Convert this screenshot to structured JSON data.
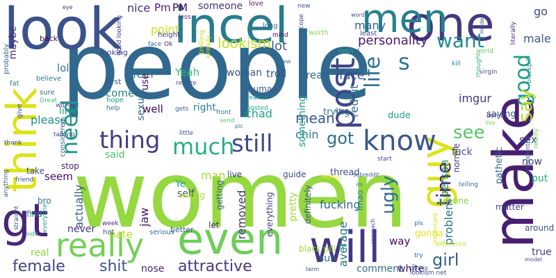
{
  "words": [
    {
      "text": "people",
      "color": "#31688e"
    },
    {
      "text": "women",
      "color": "#95d840"
    },
    {
      "text": "look",
      "color": "#3b528b"
    },
    {
      "text": "incel",
      "color": "#287d8e"
    },
    {
      "text": "one",
      "color": "#453781"
    },
    {
      "text": "men",
      "color": "#277f8e"
    },
    {
      "text": "make",
      "color": "#481f70"
    },
    {
      "text": "guy",
      "color": "#dde318"
    },
    {
      "text": "think",
      "color": "#dde318"
    },
    {
      "text": "gt",
      "color": "#482677"
    },
    {
      "text": "even",
      "color": "#6ece58"
    },
    {
      "text": "will",
      "color": "#453781"
    },
    {
      "text": "really",
      "color": "#73d055"
    },
    {
      "text": "know",
      "color": "#39558c"
    },
    {
      "text": "post",
      "color": "#3f4788"
    },
    {
      "text": "good",
      "color": "#1f9e89"
    },
    {
      "text": "say",
      "color": "#b8de29"
    },
    {
      "text": "life",
      "color": "#2d708e"
    },
    {
      "text": "time",
      "color": "#482173"
    },
    {
      "text": "want",
      "color": "#238a8d"
    },
    {
      "text": "thing",
      "color": "#433e85"
    },
    {
      "text": "much",
      "color": "#29af7f"
    },
    {
      "text": "still",
      "color": "#3e4989"
    },
    {
      "text": "need",
      "color": "#1f968b"
    },
    {
      "text": "s",
      "color": "#2a788e"
    },
    {
      "text": "got",
      "color": "#2d708e"
    },
    {
      "text": "see",
      "color": "#56c667"
    },
    {
      "text": "female",
      "color": "#404688"
    },
    {
      "text": "shit",
      "color": "#3b528b"
    },
    {
      "text": "attractive",
      "color": "#443983"
    },
    {
      "text": "ugly",
      "color": "#2e6e8e"
    },
    {
      "text": "girl",
      "color": "#34618d"
    },
    {
      "text": "fucking",
      "color": "#31688e"
    },
    {
      "text": "personality",
      "color": "#48186a"
    },
    {
      "text": "male",
      "color": "#3a548c"
    },
    {
      "text": "go",
      "color": "#414487"
    },
    {
      "text": "many",
      "color": "#33638d"
    },
    {
      "text": "lot",
      "color": "#38598c"
    },
    {
      "text": "lookism",
      "color": "#c2df23"
    },
    {
      "text": "nice",
      "color": "#472a7a"
    },
    {
      "text": "Pm",
      "color": "#481b6d"
    },
    {
      "text": "PM",
      "color": "#440154"
    },
    {
      "text": "someone",
      "color": "#46327e"
    },
    {
      "text": "point",
      "color": "#d0e11c"
    },
    {
      "text": "maybe",
      "color": "#46307e"
    },
    {
      "text": "feel",
      "color": "#2c738e"
    },
    {
      "text": "Yeah",
      "color": "#3dbc74"
    },
    {
      "text": "woman",
      "color": "#39568c"
    },
    {
      "text": "troll",
      "color": "#3a538b"
    },
    {
      "text": "read",
      "color": "#33638d"
    },
    {
      "text": "face",
      "color": "#3b518b"
    },
    {
      "text": "chad",
      "color": "#1fa287"
    },
    {
      "text": "mean",
      "color": "#375a8c"
    },
    {
      "text": "chin",
      "color": "#2b758e"
    },
    {
      "text": "reddit",
      "color": "#2d718e"
    },
    {
      "text": "imgur",
      "color": "#453581"
    },
    {
      "text": "come",
      "color": "#26828e"
    },
    {
      "text": "lol",
      "color": "#2a768e"
    },
    {
      "text": "link",
      "color": "#1e9b8a"
    },
    {
      "text": "well",
      "color": "#440154"
    },
    {
      "text": "use",
      "color": "#46075a"
    },
    {
      "text": "right",
      "color": "#25848e"
    },
    {
      "text": "please",
      "color": "#228d8d"
    },
    {
      "text": "said",
      "color": "#48c16e"
    },
    {
      "text": "man",
      "color": "#a5db36"
    },
    {
      "text": "seem",
      "color": "#471063"
    },
    {
      "text": "Ye",
      "color": "#25ab82"
    },
    {
      "text": "self",
      "color": "#3e4a89"
    },
    {
      "text": "jaw",
      "color": "#481769"
    },
    {
      "text": "removed",
      "color": "#46337f"
    },
    {
      "text": "actually",
      "color": "#365c8d"
    },
    {
      "text": "never",
      "color": "#472d7b"
    },
    {
      "text": "hate",
      "color": "#bddf26"
    },
    {
      "text": "nose",
      "color": "#482677"
    },
    {
      "text": "real",
      "color": "#8fd744"
    },
    {
      "text": "white",
      "color": "#471164"
    },
    {
      "text": "average",
      "color": "#2c738e"
    },
    {
      "text": "way",
      "color": "#460a5d"
    },
    {
      "text": "sub",
      "color": "#32648e"
    },
    {
      "text": "comment",
      "color": "#306a8e"
    },
    {
      "text": "problem",
      "color": "#2c728e"
    },
    {
      "text": "person",
      "color": "#23898e"
    },
    {
      "text": "sex",
      "color": "#3e4989"
    },
    {
      "text": "fuck",
      "color": "#3b528b"
    },
    {
      "text": "now",
      "color": "#453882"
    },
    {
      "text": "put",
      "color": "#25ab82"
    },
    {
      "text": "true",
      "color": "#424186"
    },
    {
      "text": "sexual",
      "color": "#2f6c8e"
    },
    {
      "text": "human",
      "color": "#3a548c"
    },
    {
      "text": "trying",
      "color": "#2a778e"
    },
    {
      "text": "something",
      "color": "#1f9a8a"
    },
    {
      "text": "dude",
      "color": "#1fa088"
    },
    {
      "text": "saying",
      "color": "#3b528b"
    },
    {
      "text": "pathetic",
      "color": "#31688e"
    },
    {
      "text": "thread",
      "color": "#3c4f8a"
    },
    {
      "text": "live",
      "color": "#414487"
    },
    {
      "text": "guide",
      "color": "#3e4c8a"
    },
    {
      "text": "take",
      "color": "#3f4889"
    },
    {
      "text": "stop",
      "color": "#482071"
    },
    {
      "text": "pretty",
      "color": "#a2da37"
    },
    {
      "text": "definitely",
      "color": "#3b518b"
    },
    {
      "text": "everything",
      "color": "#424086"
    },
    {
      "text": "lmao",
      "color": "#27808e"
    },
    {
      "text": "normie",
      "color": "#46337f"
    },
    {
      "text": "anyone",
      "color": "#7ad151"
    },
    {
      "text": "matter",
      "color": "#414287"
    },
    {
      "text": "around",
      "color": "#3c4f8a"
    },
    {
      "text": "getting",
      "color": "#34618d"
    },
    {
      "text": "let",
      "color": "#472a7a"
    },
    {
      "text": "gonna",
      "color": "#e5e419"
    },
    {
      "text": "re",
      "color": "#1f998a"
    },
    {
      "text": "find",
      "color": "#26818e"
    },
    {
      "text": "bro",
      "color": "#2a768e"
    },
    {
      "text": "black pill",
      "color": "#a0da39"
    },
    {
      "text": "better",
      "color": "#39568c"
    },
    {
      "text": "hot",
      "color": "#3b528b"
    },
    {
      "text": "week",
      "color": "#472c7a"
    },
    {
      "text": "serious",
      "color": "#2d708e"
    },
    {
      "text": "wrong",
      "color": "#b5de2b"
    },
    {
      "text": "first",
      "color": "#39568c"
    },
    {
      "text": "hope",
      "color": "#1f9a8a"
    },
    {
      "text": "help",
      "color": "#32658e"
    },
    {
      "text": "gets",
      "color": "#355f8d"
    },
    {
      "text": "posted",
      "color": "#22a785"
    },
    {
      "text": "reason",
      "color": "#1f948c"
    },
    {
      "text": "front",
      "color": "#2d708e"
    },
    {
      "text": "little",
      "color": "#3e4c8a"
    },
    {
      "text": "sure",
      "color": "#2f6c8e"
    },
    {
      "text": "believe",
      "color": "#287c8e"
    },
    {
      "text": "looking",
      "color": "#3f4788"
    },
    {
      "text": "realize",
      "color": "#37598c"
    },
    {
      "text": "height",
      "color": "#46317e"
    },
    {
      "text": "Ok",
      "color": "#481f70"
    },
    {
      "text": "less",
      "color": "#472878"
    },
    {
      "text": "eye",
      "color": "#472e7c"
    },
    {
      "text": "back",
      "color": "#46085c"
    },
    {
      "text": "probably",
      "color": "#31688e"
    },
    {
      "text": "fat",
      "color": "#2b758e"
    },
    {
      "text": "give",
      "color": "#3b518b"
    },
    {
      "text": "thank",
      "color": "#404588"
    },
    {
      "text": "anything",
      "color": "#375b8d"
    },
    {
      "text": "straight",
      "color": "#3c4f8a"
    },
    {
      "text": "friend",
      "color": "#3d4e8a"
    },
    {
      "text": "side",
      "color": "#27ad81"
    },
    {
      "text": "everyone",
      "color": "#1f9e89"
    },
    {
      "text": "love",
      "color": "#481668"
    },
    {
      "text": "trolling",
      "color": "#c8e020"
    },
    {
      "text": "already",
      "color": "#d2e21b"
    },
    {
      "text": "long",
      "color": "#2f6b8e"
    },
    {
      "text": "mind",
      "color": "#46085c"
    },
    {
      "text": "new",
      "color": "#355e8d"
    },
    {
      "text": "cope",
      "color": "#3e4989"
    },
    {
      "text": "worth",
      "color": "#8bd646"
    },
    {
      "text": "least",
      "color": "#404588"
    },
    {
      "text": "word",
      "color": "#3a548c"
    },
    {
      "text": "made",
      "color": "#38588c"
    },
    {
      "text": "literally",
      "color": "#482878"
    },
    {
      "text": "world",
      "color": "#5ec962"
    },
    {
      "text": "kill",
      "color": "#25838e"
    },
    {
      "text": "based",
      "color": "#33638d"
    },
    {
      "text": "seen",
      "color": "#29af7f"
    },
    {
      "text": "view",
      "color": "#2c718e"
    },
    {
      "text": "blackpill",
      "color": "#23898e"
    },
    {
      "text": "virgin",
      "color": "#404588"
    },
    {
      "text": "thought",
      "color": "#2fb47c"
    },
    {
      "text": "don t",
      "color": "#46307e"
    },
    {
      "text": "reality",
      "color": "#6ece58"
    },
    {
      "text": "orthodontist",
      "color": "#39568c"
    },
    {
      "text": "day",
      "color": "#7ad151"
    },
    {
      "text": "idea",
      "color": "#3e4a89"
    },
    {
      "text": "send",
      "color": "#65cb5e"
    },
    {
      "text": "considered",
      "color": "#31688e"
    },
    {
      "text": "talking",
      "color": "#3e4c8a"
    },
    {
      "text": "without",
      "color": "#414487"
    },
    {
      "text": "Great",
      "color": "#3dbc74"
    },
    {
      "text": "good looking",
      "color": "#472f7d"
    },
    {
      "text": "face",
      "color": "#33638d"
    },
    {
      "text": "pic",
      "color": "#2c738e"
    },
    {
      "text": "telling",
      "color": "#2a788e"
    },
    {
      "text": "money",
      "color": "#fde725"
    },
    {
      "text": "subreddit",
      "color": "#365d8d"
    },
    {
      "text": "start",
      "color": "#3f4889"
    },
    {
      "text": "im",
      "color": "#26828e"
    },
    {
      "text": "approach",
      "color": "#3d4d8a"
    },
    {
      "text": "important",
      "color": "#d8e219"
    },
    {
      "text": "pls",
      "color": "#2d708e"
    },
    {
      "text": "difference",
      "color": "#c0df25"
    },
    {
      "text": "try",
      "color": "#31688e"
    },
    {
      "text": "model",
      "color": "#3b528b"
    },
    {
      "text": "nothing",
      "color": "#34618d"
    },
    {
      "text": "term",
      "color": "#3c4f8a"
    },
    {
      "text": "lookism net",
      "color": "#3e4c8a"
    }
  ]
}
